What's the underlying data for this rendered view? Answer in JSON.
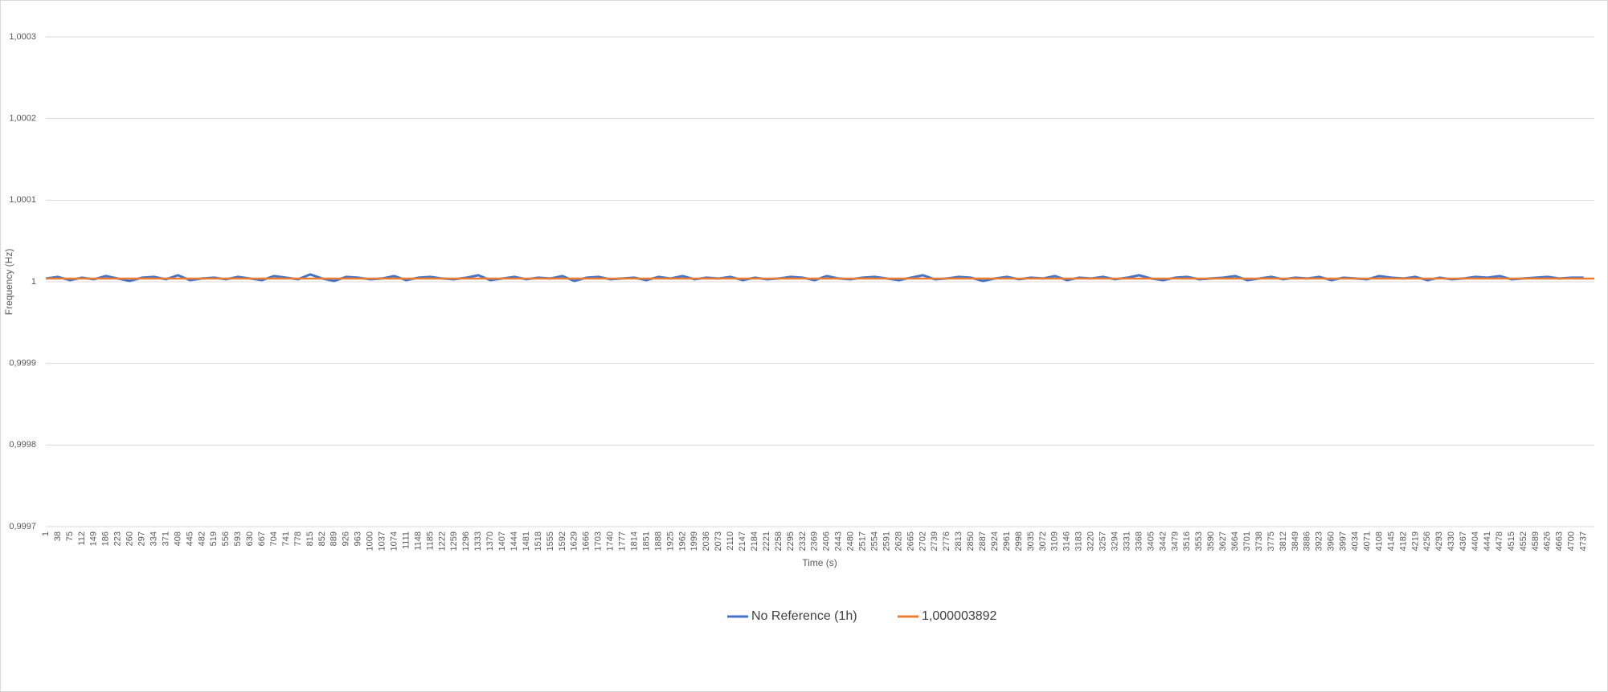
{
  "chart_data": {
    "type": "line",
    "x_label": "Time (s)",
    "y_label": "Frequency (Hz)",
    "xlim": [
      1,
      4770
    ],
    "xticks": [
      1,
      38,
      75,
      112,
      149,
      186,
      223,
      260,
      297,
      334,
      371,
      408,
      445,
      482,
      519,
      556,
      593,
      630,
      667,
      704,
      741,
      778,
      815,
      852,
      889,
      926,
      963,
      1000,
      1037,
      1074,
      1111,
      1148,
      1185,
      1222,
      1259,
      1296,
      1333,
      1370,
      1407,
      1444,
      1481,
      1518,
      1555,
      1592,
      1629,
      1666,
      1703,
      1740,
      1777,
      1814,
      1851,
      1888,
      1925,
      1962,
      1999,
      2036,
      2073,
      2110,
      2147,
      2184,
      2221,
      2258,
      2295,
      2332,
      2369,
      2406,
      2443,
      2480,
      2517,
      2554,
      2591,
      2628,
      2665,
      2702,
      2739,
      2776,
      2813,
      2850,
      2887,
      2924,
      2961,
      2998,
      3035,
      3072,
      3109,
      3146,
      3183,
      3220,
      3257,
      3294,
      3331,
      3368,
      3405,
      3442,
      3479,
      3516,
      3553,
      3590,
      3627,
      3664,
      3701,
      3738,
      3775,
      3812,
      3849,
      3886,
      3923,
      3960,
      3997,
      4034,
      4071,
      4108,
      4145,
      4182,
      4219,
      4256,
      4293,
      4330,
      4367,
      4404,
      4441,
      4478,
      4515,
      4552,
      4589,
      4626,
      4663,
      4700,
      4737
    ],
    "ylim": [
      0.9997,
      1.0003
    ],
    "yticks": [
      {
        "value": 0.9997,
        "label": "0,9997"
      },
      {
        "value": 0.9998,
        "label": "0,9998"
      },
      {
        "value": 0.9999,
        "label": "0,9999"
      },
      1,
      {
        "value": 1.0001,
        "label": "1,0001"
      },
      {
        "value": 1.0002,
        "label": "1,0002"
      },
      {
        "value": 1.0003,
        "label": "1,0003"
      }
    ],
    "grid": true,
    "legend": "bottom",
    "series": [
      {
        "name": "No Reference (1h)",
        "color": "#4472c4",
        "x": [
          1,
          38,
          75,
          112,
          149,
          186,
          223,
          260,
          297,
          334,
          371,
          408,
          445,
          482,
          519,
          556,
          593,
          630,
          667,
          704,
          741,
          778,
          815,
          852,
          889,
          926,
          963,
          1000,
          1037,
          1074,
          1111,
          1148,
          1185,
          1222,
          1259,
          1296,
          1333,
          1370,
          1407,
          1444,
          1481,
          1518,
          1555,
          1592,
          1629,
          1666,
          1703,
          1740,
          1777,
          1814,
          1851,
          1888,
          1925,
          1962,
          1999,
          2036,
          2073,
          2110,
          2147,
          2184,
          2221,
          2258,
          2295,
          2332,
          2369,
          2406,
          2443,
          2480,
          2517,
          2554,
          2591,
          2628,
          2665,
          2702,
          2739,
          2776,
          2813,
          2850,
          2887,
          2924,
          2961,
          2998,
          3035,
          3072,
          3109,
          3146,
          3183,
          3220,
          3257,
          3294,
          3331,
          3368,
          3405,
          3442,
          3479,
          3516,
          3553,
          3590,
          3627,
          3664,
          3701,
          3738,
          3775,
          3812,
          3849,
          3886,
          3923,
          3960,
          3997,
          4034,
          4071,
          4108,
          4145,
          4182,
          4219,
          4256,
          4293,
          4330,
          4367,
          4404,
          4441,
          4478,
          4515,
          4552,
          4589,
          4626,
          4663,
          4700,
          4737
        ],
        "values": [
          1.000004,
          1.000006,
          1.000002,
          1.000005,
          1.000003,
          1.000007,
          1.000004,
          1.000001,
          1.000005,
          1.000006,
          1.000003,
          1.000008,
          1.000002,
          1.000004,
          1.000005,
          1.000003,
          1.000006,
          1.000004,
          1.000002,
          1.000007,
          1.000005,
          1.000003,
          1.000009,
          1.000004,
          1.000001,
          1.000006,
          1.000005,
          1.000003,
          1.000004,
          1.000007,
          1.000002,
          1.000005,
          1.000006,
          1.000004,
          1.000003,
          1.000005,
          1.000008,
          1.000002,
          1.000004,
          1.000006,
          1.000003,
          1.000005,
          1.000004,
          1.000007,
          1.000001,
          1.000005,
          1.000006,
          1.000003,
          1.000004,
          1.000005,
          1.000002,
          1.000006,
          1.000004,
          1.000007,
          1.000003,
          1.000005,
          1.000004,
          1.000006,
          1.000002,
          1.000005,
          1.000003,
          1.000004,
          1.000006,
          1.000005,
          1.000002,
          1.000007,
          1.000004,
          1.000003,
          1.000005,
          1.000006,
          1.000004,
          1.000002,
          1.000005,
          1.000008,
          1.000003,
          1.000004,
          1.000006,
          1.000005,
          1.000001,
          1.000004,
          1.000006,
          1.000003,
          1.000005,
          1.000004,
          1.000007,
          1.000002,
          1.000005,
          1.000004,
          1.000006,
          1.000003,
          1.000005,
          1.000008,
          1.000004,
          1.000002,
          1.000005,
          1.000006,
          1.000003,
          1.000004,
          1.000005,
          1.000007,
          1.000002,
          1.000004,
          1.000006,
          1.000003,
          1.000005,
          1.000004,
          1.000006,
          1.000002,
          1.000005,
          1.000004,
          1.000003,
          1.000007,
          1.000005,
          1.000004,
          1.000006,
          1.000002,
          1.000005,
          1.000003,
          1.000004,
          1.000006,
          1.000005,
          1.000007,
          1.000003,
          1.000004,
          1.000005,
          1.000006,
          1.000004,
          1.000005,
          1.000005
        ]
      },
      {
        "name": "1,000003892",
        "color": "#ed7d31",
        "x": [
          1,
          4770
        ],
        "values": [
          1.000003892,
          1.000003892
        ]
      }
    ]
  }
}
